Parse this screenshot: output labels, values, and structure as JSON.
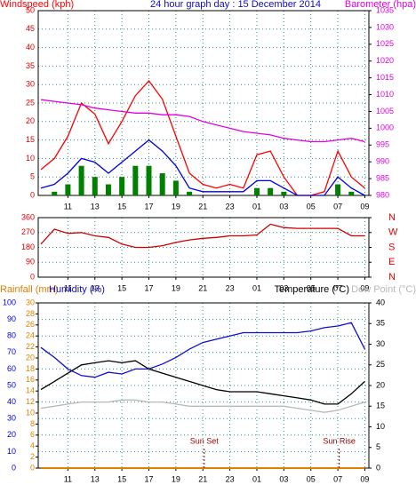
{
  "chart_data": [
    {
      "type": "line",
      "title": "24 hour graph day : 15 December 2014",
      "title_color": "#1010b0",
      "x": [
        9,
        10,
        11,
        12,
        13,
        14,
        15,
        16,
        17,
        18,
        19,
        20,
        21,
        22,
        23,
        24,
        25,
        26,
        27,
        28,
        29,
        30,
        31,
        32,
        33
      ],
      "xlim": [
        8.8,
        33.3
      ],
      "xticks": [
        11,
        13,
        15,
        17,
        19,
        21,
        23,
        {
          "value": 25,
          "label": "01"
        },
        {
          "value": 27,
          "label": "03"
        },
        {
          "value": 29,
          "label": "05"
        },
        {
          "value": 31,
          "label": "07"
        },
        {
          "value": 33,
          "label": "09"
        }
      ],
      "ylim": [
        0,
        50
      ],
      "yticks": [
        0,
        5,
        10,
        15,
        20,
        25,
        30,
        35,
        40,
        45,
        50
      ],
      "ycolor": "#e00000",
      "y2lim": [
        980,
        1035
      ],
      "y2ticks": [
        980,
        985,
        990,
        995,
        1000,
        1005,
        1010,
        1015,
        1020,
        1025,
        1030,
        1035
      ],
      "y2color": "#e000e0",
      "grid": true,
      "series": [
        {
          "name": "Windspeed (kph)",
          "color": "#ff0000",
          "values": [
            7,
            10,
            16,
            25,
            22,
            14,
            20,
            27,
            31,
            26,
            16,
            6,
            3,
            2,
            3,
            2,
            11,
            12,
            5,
            0,
            0,
            1,
            12,
            5,
            2
          ]
        },
        {
          "color": "#0000e0",
          "values": [
            2,
            3,
            6,
            10,
            9,
            6,
            9,
            12,
            15,
            12,
            8,
            2,
            1,
            1,
            1,
            1,
            4,
            4,
            2,
            0,
            0,
            0,
            5,
            2,
            0
          ]
        },
        {
          "color": "#008000",
          "style": "bar",
          "values": [
            0,
            1,
            3,
            8,
            5,
            3,
            5,
            8,
            8,
            6,
            4,
            1,
            0,
            0,
            0,
            0,
            2,
            2,
            1,
            0,
            0,
            0,
            3,
            1,
            0
          ]
        },
        {
          "name": "Barometer (hpa)",
          "color": "#e000e0",
          "axis": "y2",
          "values": [
            1008.5,
            1008,
            1007.5,
            1007,
            1006,
            1005.5,
            1005,
            1004.5,
            1004.5,
            1004,
            1004,
            1003.5,
            1002,
            1001,
            1000,
            999,
            998.5,
            998,
            997,
            996.5,
            996,
            996,
            996.5,
            997,
            996
          ]
        }
      ]
    },
    {
      "type": "line",
      "x": [
        9,
        10,
        11,
        12,
        13,
        14,
        15,
        16,
        17,
        18,
        19,
        20,
        21,
        22,
        23,
        24,
        25,
        26,
        27,
        28,
        29,
        30,
        31,
        32,
        33
      ],
      "xlim": [
        8.8,
        33.3
      ],
      "xticks": [
        11,
        13,
        15,
        17,
        19,
        21,
        23,
        {
          "value": 25,
          "label": "01"
        },
        {
          "value": 27,
          "label": "03"
        },
        {
          "value": 29,
          "label": "05"
        },
        {
          "value": 31,
          "label": "07"
        },
        {
          "value": 33,
          "label": "09"
        }
      ],
      "ylim": [
        0,
        360
      ],
      "yticks": [
        0,
        90,
        180,
        270,
        360
      ],
      "ycolor": "#e00000",
      "y2lim": [
        0,
        360
      ],
      "y2ticks": [
        {
          "value": 360,
          "label": "N"
        },
        {
          "value": 270,
          "label": "W"
        },
        {
          "value": 180,
          "label": "S"
        },
        {
          "value": 90,
          "label": "E"
        },
        {
          "value": 0,
          "label": "N"
        }
      ],
      "y2color": "#e00000",
      "grid": true,
      "series": [
        {
          "color": "#cc0000",
          "values": [
            200,
            290,
            265,
            270,
            250,
            240,
            200,
            180,
            180,
            190,
            210,
            225,
            235,
            240,
            250,
            250,
            255,
            320,
            300,
            295,
            295,
            295,
            295,
            250,
            250
          ]
        }
      ]
    },
    {
      "type": "line",
      "x": [
        9,
        10,
        11,
        12,
        13,
        14,
        15,
        16,
        17,
        18,
        19,
        20,
        21,
        22,
        23,
        24,
        25,
        26,
        27,
        28,
        29,
        30,
        31,
        32,
        33
      ],
      "xlim": [
        8.8,
        33.3
      ],
      "xticks": [
        11,
        13,
        15,
        17,
        19,
        21,
        23,
        {
          "value": 25,
          "label": "01"
        },
        {
          "value": 27,
          "label": "03"
        },
        {
          "value": 29,
          "label": "05"
        },
        {
          "value": 31,
          "label": "07"
        },
        {
          "value": 33,
          "label": "09"
        }
      ],
      "ylim": [
        0,
        100
      ],
      "yticks": [
        0,
        10,
        20,
        30,
        40,
        50,
        60,
        70,
        80,
        90,
        100
      ],
      "ycolor": "#0000e0",
      "y2lim": [
        0,
        40
      ],
      "y2ticks": [
        0,
        5,
        10,
        15,
        20,
        25,
        30,
        35,
        40
      ],
      "y2color": "#000000",
      "y3lim": [
        0,
        30
      ],
      "y3ticks": [
        0,
        2,
        4,
        6,
        8,
        10,
        12,
        14,
        16,
        18,
        20,
        22,
        24,
        26,
        28,
        30
      ],
      "y3color": "#e08000",
      "grid": true,
      "series": [
        {
          "name": "Rainfall (mm)",
          "color": "#e08000",
          "axis": "y3",
          "values": [
            0,
            0,
            0,
            0,
            0,
            0,
            0,
            0,
            0,
            0,
            0,
            0,
            0,
            0,
            0,
            0,
            0,
            0,
            0,
            0,
            0,
            0,
            0,
            0,
            0
          ]
        },
        {
          "name": "Humidity (%)",
          "color": "#1010d0",
          "values": [
            73,
            67,
            60,
            56,
            55,
            58,
            57,
            60,
            60,
            63,
            67,
            72,
            76,
            78,
            80,
            82,
            82,
            82,
            82,
            82,
            83,
            85,
            86,
            88,
            72
          ]
        },
        {
          "name": "Temperature (°C)",
          "color": "#000000",
          "axis": "y2",
          "values": [
            19,
            21,
            23,
            25,
            25.5,
            26,
            25.5,
            26,
            24,
            23,
            22,
            21,
            20,
            19,
            18.5,
            18.5,
            18.5,
            18,
            17.5,
            17,
            16.5,
            15.5,
            15.5,
            18,
            21
          ]
        },
        {
          "name": "Dew Point (°C)",
          "color": "#b8b8b8",
          "axis": "y2",
          "values": [
            14.5,
            15,
            15.5,
            16,
            16,
            16,
            16.5,
            16.5,
            16,
            16,
            15.5,
            15,
            15,
            15,
            15,
            15,
            15,
            15,
            15,
            14.5,
            14,
            13.5,
            14,
            15,
            16
          ]
        }
      ],
      "annotations": [
        {
          "text": "Sun Set",
          "x": 21.1
        },
        {
          "text": "Sun Rise",
          "x": 31.1
        }
      ]
    }
  ]
}
